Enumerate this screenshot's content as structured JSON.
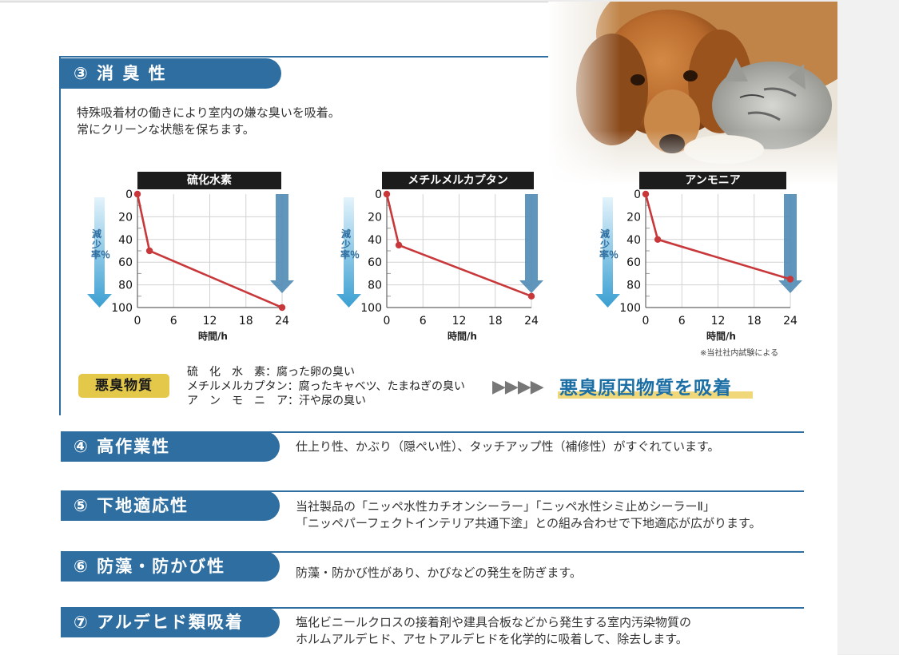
{
  "sections": {
    "s3": {
      "title": "③ 消 臭 性",
      "desc_lines": [
        "特殊吸着材の働きにより室内の嫌な臭いを吸着。",
        "常にクリーンな状態を保ちます。"
      ]
    },
    "s4": {
      "title": "④ 高作業性",
      "text_lines": [
        "仕上り性、かぶり（隠ぺい性）、タッチアップ性（補修性）がすぐれています。"
      ]
    },
    "s5": {
      "title": "⑤ 下地適応性",
      "text_lines": [
        "当社製品の「ニッペ水性カチオンシーラー」「ニッペ水性シミ止めシーラーⅡ」",
        "「ニッペパーフェクトインテリア共通下塗」との組み合わせで下地適応が広がります。"
      ]
    },
    "s6": {
      "title": "⑥ 防藻・防かび性",
      "text_lines": [
        "防藻・防かび性があり、かびなどの発生を防ぎます。"
      ]
    },
    "s7": {
      "title": "⑦ アルデヒド類吸着",
      "text_lines": [
        "塩化ビニールクロスの接着剤や建具合板などから発生する室内汚染物質の",
        "ホルムアルデヒド、アセトアルデヒドを化学的に吸着して、除去します。"
      ]
    }
  },
  "chart_labels": {
    "ylabel": "減少率％",
    "xlabel": "時間/h",
    "note": "※当社社内試験による"
  },
  "chart_data": [
    {
      "type": "line",
      "title": "硫化水素",
      "xlabel": "時間/h",
      "ylabel": "減少率％",
      "x": [
        0,
        2,
        24
      ],
      "y": [
        0,
        50,
        100
      ],
      "xticks": [
        0,
        6,
        12,
        18,
        24
      ],
      "yticks": [
        0,
        20,
        40,
        60,
        80,
        100
      ],
      "xlim": [
        0,
        24
      ],
      "ylim": [
        0,
        100
      ],
      "y_inverted": true,
      "grid": true,
      "line_color": "#c8383a"
    },
    {
      "type": "line",
      "title": "メチルメルカプタン",
      "xlabel": "時間/h",
      "ylabel": "減少率％",
      "x": [
        0,
        2,
        24
      ],
      "y": [
        0,
        45,
        90
      ],
      "xticks": [
        0,
        6,
        12,
        18,
        24
      ],
      "yticks": [
        0,
        20,
        40,
        60,
        80,
        100
      ],
      "xlim": [
        0,
        24
      ],
      "ylim": [
        0,
        100
      ],
      "y_inverted": true,
      "grid": true,
      "line_color": "#c8383a"
    },
    {
      "type": "line",
      "title": "アンモニア",
      "xlabel": "時間/h",
      "ylabel": "減少率％",
      "x": [
        0,
        2,
        24
      ],
      "y": [
        0,
        40,
        75
      ],
      "xticks": [
        0,
        6,
        12,
        18,
        24
      ],
      "yticks": [
        0,
        20,
        40,
        60,
        80,
        100
      ],
      "xlim": [
        0,
        24
      ],
      "ylim": [
        0,
        100
      ],
      "y_inverted": true,
      "grid": true,
      "line_color": "#c8383a"
    }
  ],
  "odor": {
    "badge": "悪臭物質",
    "rows": [
      {
        "name": "硫　化　水　素",
        "desc": "：腐った卵の臭い"
      },
      {
        "name": "メチルメルカプタン",
        "desc": "：腐ったキャベツ、たまねぎの臭い"
      },
      {
        "name": "ア　ン　モ　ニ　ア",
        "desc": "：汗や尿の臭い"
      }
    ],
    "arrows": "▶▶▶▶",
    "headline": "悪臭原因物質を吸着"
  },
  "colors": {
    "accent": "#2f6ea0",
    "line": "#c8383a",
    "badge": "#e4c84a",
    "headline": "#1c6fa5"
  }
}
